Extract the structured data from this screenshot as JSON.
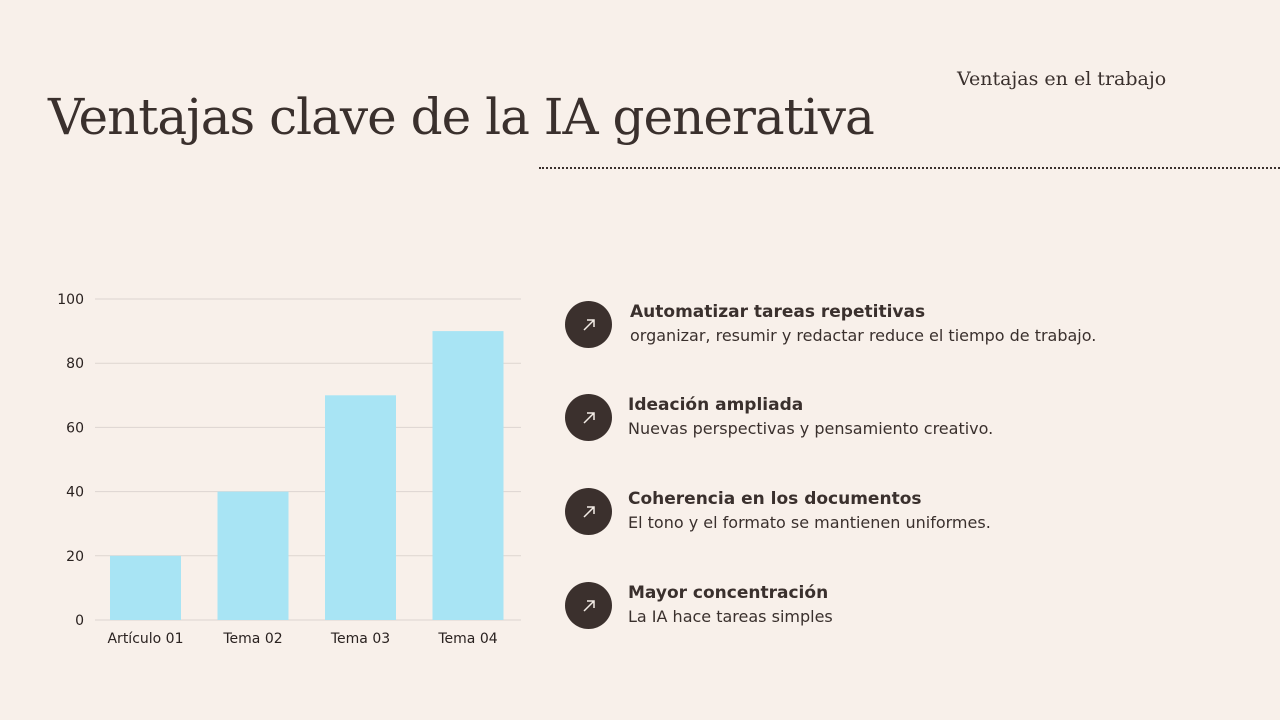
{
  "header": {
    "title": "Ventajas clave de la IA generativa",
    "subtitle": "Ventajas en el trabajo"
  },
  "chart_data": {
    "type": "bar",
    "categories": [
      "Artículo 01",
      "Tema 02",
      "Tema 03",
      "Tema 04"
    ],
    "values": [
      20,
      40,
      70,
      90
    ],
    "ylim": [
      0,
      100
    ],
    "yticks": [
      0,
      20,
      40,
      60,
      80,
      100
    ],
    "grid": true,
    "bar_color": "#a8e4f4",
    "title": "",
    "xlabel": "",
    "ylabel": ""
  },
  "benefits": [
    {
      "icon": "arrow-up-right-icon",
      "title": "Automatizar tareas repetitivas",
      "desc": "organizar, resumir y redactar reduce el tiempo de trabajo."
    },
    {
      "icon": "arrow-up-right-icon",
      "title": "Ideación ampliada",
      "desc": "Nuevas perspectivas y pensamiento creativo."
    },
    {
      "icon": "arrow-up-right-icon",
      "title": "Coherencia en los documentos",
      "desc": "El tono y el formato se mantienen uniformes."
    },
    {
      "icon": "arrow-up-right-icon",
      "title": "Mayor concentración",
      "desc": "La IA hace tareas simples"
    }
  ]
}
